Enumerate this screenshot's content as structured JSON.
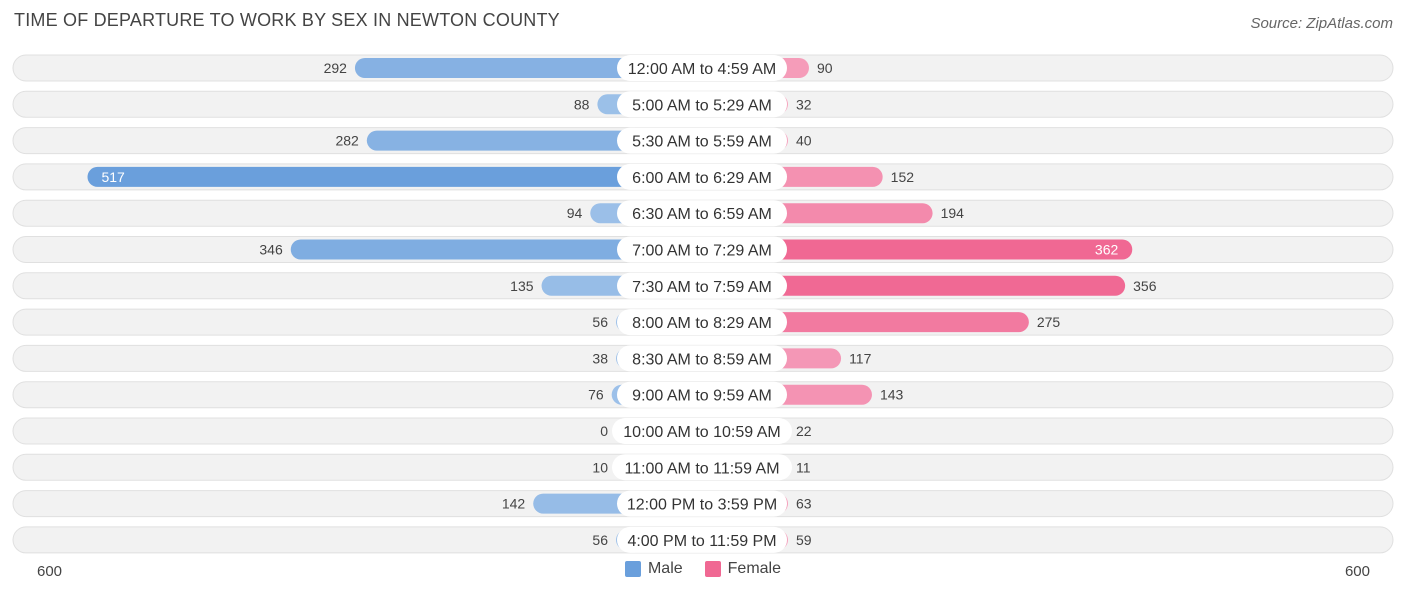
{
  "title": "TIME OF DEPARTURE TO WORK BY SEX IN NEWTON COUNTY",
  "source": "Source: ZipAtlas.com",
  "colors": {
    "male_light": "#a2c4ea",
    "male_dark": "#6a9fdc",
    "female_light": "#f6a8c2",
    "female_dark": "#f06893",
    "track": "#f2f2f2",
    "track_border": "#e0e0e0"
  },
  "legend": {
    "male": "Male",
    "female": "Female"
  },
  "axis": {
    "left_label": "600",
    "right_label": "600"
  },
  "chart_data": {
    "type": "bar",
    "orientation": "horizontal-diverging",
    "title": "TIME OF DEPARTURE TO WORK BY SEX IN NEWTON COUNTY",
    "xlim": [
      -600,
      600
    ],
    "categories": [
      "12:00 AM to 4:59 AM",
      "5:00 AM to 5:29 AM",
      "5:30 AM to 5:59 AM",
      "6:00 AM to 6:29 AM",
      "6:30 AM to 6:59 AM",
      "7:00 AM to 7:29 AM",
      "7:30 AM to 7:59 AM",
      "8:00 AM to 8:29 AM",
      "8:30 AM to 8:59 AM",
      "9:00 AM to 9:59 AM",
      "10:00 AM to 10:59 AM",
      "11:00 AM to 11:59 AM",
      "12:00 PM to 3:59 PM",
      "4:00 PM to 11:59 PM"
    ],
    "series": [
      {
        "name": "Male",
        "values": [
          292,
          88,
          282,
          517,
          94,
          346,
          135,
          56,
          38,
          76,
          0,
          10,
          142,
          56
        ]
      },
      {
        "name": "Female",
        "values": [
          90,
          32,
          40,
          152,
          194,
          362,
          356,
          275,
          117,
          143,
          22,
          11,
          63,
          59
        ]
      }
    ],
    "legend_position": "bottom-center"
  }
}
